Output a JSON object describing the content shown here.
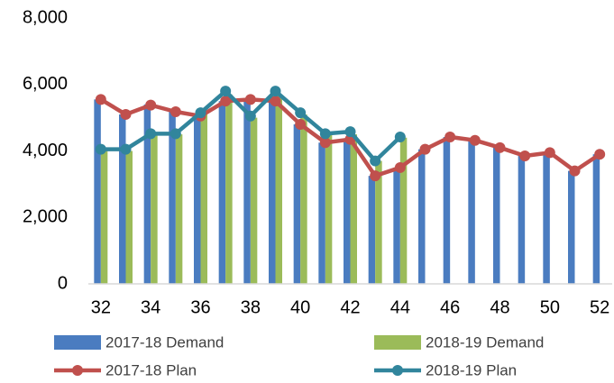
{
  "chart_data": {
    "type": "bar-line",
    "categories": [
      32,
      null,
      34,
      null,
      36,
      null,
      38,
      null,
      40,
      null,
      42,
      null,
      44,
      null,
      46,
      null,
      48,
      null,
      50,
      null,
      52
    ],
    "series": [
      {
        "name": "2017-18 Demand",
        "kind": "bar",
        "color": "#4a7cc0",
        "values": [
          5550,
          5100,
          5400,
          5200,
          5050,
          5500,
          5550,
          5500,
          4800,
          4250,
          4350,
          3250,
          3500,
          4050,
          4420,
          4320,
          4100,
          3850,
          3950,
          3400,
          3900
        ]
      },
      {
        "name": "2018-19 Demand",
        "kind": "bar",
        "color": "#9bbb59",
        "values": [
          4000,
          4000,
          4500,
          4500,
          5100,
          5700,
          5000,
          5700,
          5100,
          4500,
          4500,
          3700,
          4400,
          null,
          null,
          null,
          null,
          null,
          null,
          null,
          null
        ]
      },
      {
        "name": "2017-18 Plan",
        "kind": "line",
        "color": "#c0504d",
        "values": [
          5550,
          5100,
          5380,
          5180,
          5050,
          5500,
          5550,
          5500,
          4800,
          4250,
          4350,
          3250,
          3500,
          4050,
          4420,
          4320,
          4100,
          3850,
          3950,
          3400,
          3900
        ]
      },
      {
        "name": "2018-19 Plan",
        "kind": "line",
        "color": "#31859c",
        "values": [
          4050,
          4050,
          4520,
          4520,
          5150,
          5800,
          5050,
          5800,
          5150,
          4520,
          4580,
          3700,
          4420,
          null,
          null,
          null,
          null,
          null,
          null,
          null,
          null
        ]
      }
    ],
    "ylim": [
      0,
      8000
    ],
    "yticks": [
      0,
      {
        "value": 2000,
        "label": "2,000"
      },
      {
        "value": 4000,
        "label": "4,000"
      },
      {
        "value": 6000,
        "label": "6,000"
      },
      {
        "value": 8000,
        "label": "8,000"
      }
    ],
    "grid": false
  }
}
